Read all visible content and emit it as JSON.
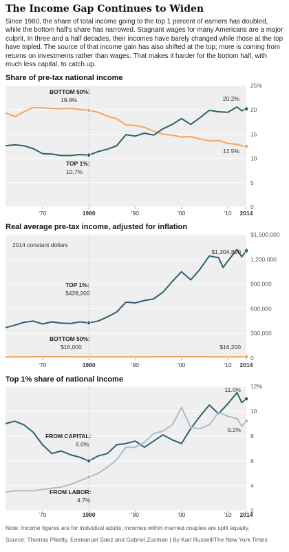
{
  "header": {
    "title": "The Income Gap Continues to Widen",
    "intro": "Since 1980, the share of total income going to the top 1 percent of earners has doubled, while the bottom half's share has narrowed. Stagnant wages for many Americans are a major culprit. In three and a half decades, their incomes have barely changed while those at the top have tripled. The source of that income gain has also shifted at the top; more is coming from returns on investments rather than wages. That makes it harder for the bottom half, with much less capital, to catch up."
  },
  "colors": {
    "teal": "#2b5f6e",
    "orange": "#f5a45c",
    "gray_blue": "#a9bdcc",
    "panel_bg": "#efefef"
  },
  "chart_data": [
    {
      "type": "line",
      "title": "Share of pre-tax national income",
      "xlim": [
        1962,
        2014
      ],
      "ylim": [
        0,
        25
      ],
      "y_ticks": [
        "0",
        "5",
        "10",
        "15",
        "20",
        "25%"
      ],
      "x_ticks": [
        "'70",
        "1980",
        "'90",
        "'00",
        "'10",
        "2014"
      ],
      "series": [
        {
          "name": "BOTTOM 50%",
          "color": "#f5a45c",
          "x": [
            1962,
            1964,
            1966,
            1968,
            1970,
            1972,
            1974,
            1976,
            1978,
            1980,
            1982,
            1984,
            1986,
            1988,
            1990,
            1992,
            1994,
            1996,
            1998,
            2000,
            2002,
            2004,
            2006,
            2008,
            2010,
            2012,
            2013,
            2014
          ],
          "values": [
            19.4,
            18.6,
            19.6,
            20.5,
            20.4,
            20.3,
            20.2,
            20.3,
            20.1,
            19.9,
            19.5,
            18.7,
            18.2,
            16.9,
            16.8,
            16.4,
            15.6,
            15.0,
            14.8,
            14.4,
            14.5,
            14.0,
            13.6,
            13.7,
            13.1,
            12.9,
            12.6,
            12.5
          ],
          "label_1980": "19.9%",
          "label_2014": "12.5%"
        },
        {
          "name": "TOP 1%",
          "color": "#2b5f6e",
          "x": [
            1962,
            1964,
            1966,
            1968,
            1970,
            1972,
            1974,
            1976,
            1978,
            1980,
            1982,
            1984,
            1986,
            1988,
            1990,
            1992,
            1994,
            1996,
            1998,
            2000,
            2002,
            2004,
            2006,
            2008,
            2010,
            2012,
            2013,
            2014
          ],
          "values": [
            12.6,
            12.8,
            12.6,
            12.0,
            11.0,
            10.9,
            10.6,
            10.6,
            10.8,
            10.7,
            11.4,
            11.9,
            12.6,
            14.9,
            14.6,
            15.2,
            14.8,
            16.1,
            17.0,
            18.2,
            17.0,
            18.4,
            19.9,
            19.6,
            19.5,
            20.6,
            19.8,
            20.2
          ],
          "label_1980": "10.7%",
          "label_2014": "20.2%"
        }
      ]
    },
    {
      "type": "line",
      "title": "Real average pre-tax income, adjusted for inflation",
      "subtitle": "2014 constant dollars",
      "xlim": [
        1962,
        2014
      ],
      "ylim": [
        0,
        1500000
      ],
      "y_ticks": [
        "0",
        "300,000",
        "600,000",
        "900,000",
        "1,200,000",
        "$1,500,000"
      ],
      "x_ticks": [
        "'70",
        "1980",
        "'90",
        "'00",
        "'10",
        "2014"
      ],
      "series": [
        {
          "name": "TOP 1%",
          "color": "#2b5f6e",
          "x": [
            1962,
            1964,
            1966,
            1968,
            1970,
            1972,
            1974,
            1976,
            1978,
            1980,
            1982,
            1984,
            1986,
            1988,
            1990,
            1992,
            1994,
            1996,
            1998,
            2000,
            2002,
            2004,
            2006,
            2008,
            2009,
            2010,
            2012,
            2013,
            2014
          ],
          "values": [
            370000,
            400000,
            435000,
            450000,
            415000,
            440000,
            425000,
            420000,
            440000,
            428200,
            450000,
            500000,
            560000,
            680000,
            670000,
            700000,
            720000,
            800000,
            930000,
            1050000,
            950000,
            1080000,
            1240000,
            1220000,
            1100000,
            1180000,
            1320000,
            1230000,
            1304800
          ],
          "label_1980": "$428,200",
          "label_2014": "$1,304,800"
        },
        {
          "name": "BOTTOM 50%",
          "color": "#f5a45c",
          "x": [
            1962,
            1970,
            1980,
            1990,
            2000,
            2010,
            2014
          ],
          "values": [
            15000,
            16500,
            16000,
            16200,
            16600,
            16100,
            16200
          ],
          "label_1980": "$16,000",
          "label_2014": "$16,200"
        }
      ]
    },
    {
      "type": "line",
      "title": "Top 1% share of national income",
      "xlim": [
        1962,
        2014
      ],
      "ylim": [
        2,
        12
      ],
      "y_ticks": [
        "2",
        "4",
        "6",
        "8",
        "10",
        "12%"
      ],
      "x_ticks": [
        "'70",
        "1980",
        "'90",
        "'00",
        "'10",
        "2014"
      ],
      "series": [
        {
          "name": "FROM CAPITAL",
          "color": "#2b5f6e",
          "x": [
            1962,
            1964,
            1966,
            1968,
            1970,
            1972,
            1974,
            1976,
            1978,
            1980,
            1982,
            1984,
            1986,
            1988,
            1990,
            1992,
            1994,
            1996,
            1998,
            2000,
            2002,
            2004,
            2006,
            2008,
            2010,
            2012,
            2013,
            2014
          ],
          "values": [
            9.0,
            9.2,
            8.9,
            8.3,
            7.3,
            6.6,
            6.8,
            6.5,
            6.3,
            6.0,
            6.4,
            6.6,
            7.3,
            7.4,
            7.6,
            7.1,
            7.6,
            8.1,
            7.7,
            7.4,
            8.6,
            9.6,
            10.5,
            9.8,
            10.6,
            11.5,
            10.7,
            11.0
          ],
          "label_1980": "6.0%",
          "label_2014": "11.0%"
        },
        {
          "name": "FROM LABOR",
          "color": "#a9bdcc",
          "x": [
            1962,
            1964,
            1966,
            1968,
            1970,
            1972,
            1974,
            1976,
            1978,
            1980,
            1982,
            1984,
            1986,
            1988,
            1990,
            1992,
            1994,
            1996,
            1998,
            2000,
            2002,
            2004,
            2006,
            2008,
            2010,
            2012,
            2013,
            2014
          ],
          "values": [
            3.5,
            3.6,
            3.6,
            3.6,
            3.7,
            3.8,
            3.9,
            4.1,
            4.4,
            4.7,
            5.0,
            5.5,
            6.1,
            7.1,
            7.1,
            7.5,
            8.2,
            8.4,
            8.9,
            10.3,
            8.7,
            8.6,
            8.9,
            9.9,
            9.6,
            9.4,
            8.8,
            9.2
          ],
          "label_1980": "4.7%",
          "label_2014": "9.2%"
        }
      ]
    }
  ],
  "footer": {
    "note": "Note: Income figures are for individual adults; incomes within married couples are split equally.",
    "source": "Source: Thomas Piketty, Emmanuel Saez and Gabriel Zucman | By Karl Russell/The New York Times"
  }
}
